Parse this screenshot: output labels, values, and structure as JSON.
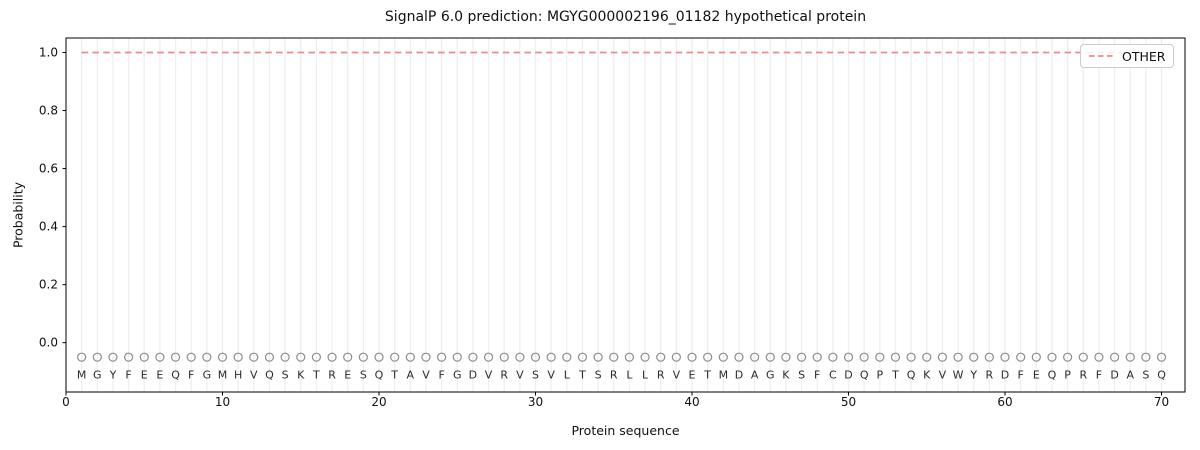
{
  "chart_data": {
    "type": "line",
    "title": "SignalP 6.0 prediction: MGYG000002196_01182 hypothetical protein",
    "xlabel": "Protein sequence",
    "ylabel": "Probability",
    "sequence": "MGYFEEQFGMHVQSKTRESQTAVFGDVRVSVLTSRLLRVETMDAGKSFCDQPTQKVWYRDFEQPRFDASQ",
    "x": [
      1,
      2,
      3,
      4,
      5,
      6,
      7,
      8,
      9,
      10,
      11,
      12,
      13,
      14,
      15,
      16,
      17,
      18,
      19,
      20,
      21,
      22,
      23,
      24,
      25,
      26,
      27,
      28,
      29,
      30,
      31,
      32,
      33,
      34,
      35,
      36,
      37,
      38,
      39,
      40,
      41,
      42,
      43,
      44,
      45,
      46,
      47,
      48,
      49,
      50,
      51,
      52,
      53,
      54,
      55,
      56,
      57,
      58,
      59,
      60,
      61,
      62,
      63,
      64,
      65,
      66,
      67,
      68,
      69,
      70
    ],
    "series": [
      {
        "name": "OTHER",
        "color": "#ee8a8a",
        "line_style": "dashed",
        "values": [
          1.0,
          1.0,
          1.0,
          1.0,
          1.0,
          1.0,
          1.0,
          1.0,
          1.0,
          1.0,
          1.0,
          1.0,
          1.0,
          1.0,
          1.0,
          1.0,
          1.0,
          1.0,
          1.0,
          1.0,
          1.0,
          1.0,
          1.0,
          1.0,
          1.0,
          1.0,
          1.0,
          1.0,
          1.0,
          1.0,
          1.0,
          1.0,
          1.0,
          1.0,
          1.0,
          1.0,
          1.0,
          1.0,
          1.0,
          1.0,
          1.0,
          1.0,
          1.0,
          1.0,
          1.0,
          1.0,
          1.0,
          1.0,
          1.0,
          1.0,
          1.0,
          1.0,
          1.0,
          1.0,
          1.0,
          1.0,
          1.0,
          1.0,
          1.0,
          1.0,
          1.0,
          1.0,
          1.0,
          1.0,
          1.0,
          1.0,
          1.0,
          1.0,
          1.0,
          1.0
        ]
      }
    ],
    "xticks": [
      0,
      10,
      20,
      30,
      40,
      50,
      60,
      70
    ],
    "yticks": [
      0.0,
      0.2,
      0.4,
      0.6,
      0.8,
      1.0
    ],
    "xlim": [
      0,
      71.5
    ],
    "ylim": [
      -0.17,
      1.05
    ],
    "grid": {
      "vertical_per_residue": true,
      "color": "#efefef"
    },
    "residue_markers": {
      "shape": "circle",
      "y": -0.05,
      "color": "#8c8c8c"
    },
    "residue_letters_y": -0.108,
    "legend": {
      "label": "OTHER",
      "position": "upper right"
    },
    "colors": {
      "spine": "#000000",
      "tick_text": "#111111",
      "letters": "#2b2b2b",
      "background": "#ffffff"
    }
  }
}
